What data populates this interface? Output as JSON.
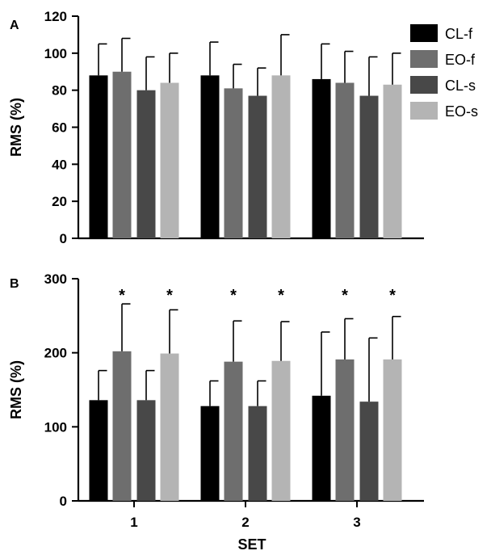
{
  "chart_data": [
    {
      "type": "bar",
      "panel": "A",
      "categories": [
        "1",
        "2",
        "3"
      ],
      "ylabel": "RMS (%)",
      "xlabel": "",
      "ylim": [
        0,
        120
      ],
      "yticks": [
        0,
        20,
        40,
        60,
        80,
        100,
        120
      ],
      "series": [
        {
          "name": "CL-f",
          "color": "#000000",
          "values": [
            88,
            88,
            86
          ],
          "errors": [
            17,
            18,
            19
          ]
        },
        {
          "name": "EO-f",
          "color": "#6e6e6e",
          "values": [
            90,
            81,
            84
          ],
          "errors": [
            18,
            13,
            17
          ]
        },
        {
          "name": "CL-s",
          "color": "#484848",
          "values": [
            80,
            77,
            77
          ],
          "errors": [
            18,
            15,
            21
          ]
        },
        {
          "name": "EO-s",
          "color": "#b4b4b4",
          "values": [
            84,
            88,
            83
          ],
          "errors": [
            16,
            22,
            17
          ]
        }
      ],
      "significance": []
    },
    {
      "type": "bar",
      "panel": "B",
      "categories": [
        "1",
        "2",
        "3"
      ],
      "ylabel": "RMS (%)",
      "xlabel": "SET",
      "ylim": [
        0,
        300
      ],
      "yticks": [
        0,
        100,
        200,
        300
      ],
      "series": [
        {
          "name": "CL-f",
          "color": "#000000",
          "values": [
            136,
            128,
            142
          ],
          "errors": [
            40,
            34,
            86
          ]
        },
        {
          "name": "EO-f",
          "color": "#6e6e6e",
          "values": [
            202,
            188,
            191
          ],
          "errors": [
            64,
            55,
            55
          ]
        },
        {
          "name": "CL-s",
          "color": "#484848",
          "values": [
            136,
            128,
            134
          ],
          "errors": [
            40,
            34,
            86
          ]
        },
        {
          "name": "EO-s",
          "color": "#b4b4b4",
          "values": [
            199,
            189,
            191
          ],
          "errors": [
            59,
            53,
            58
          ]
        }
      ],
      "significance": [
        {
          "category": "1",
          "series": "EO-f",
          "mark": "*"
        },
        {
          "category": "1",
          "series": "EO-s",
          "mark": "*"
        },
        {
          "category": "2",
          "series": "EO-f",
          "mark": "*"
        },
        {
          "category": "2",
          "series": "EO-s",
          "mark": "*"
        },
        {
          "category": "3",
          "series": "EO-f",
          "mark": "*"
        },
        {
          "category": "3",
          "series": "EO-s",
          "mark": "*"
        }
      ]
    }
  ],
  "legend": {
    "placement": "top-right",
    "items": [
      {
        "name": "CL-f",
        "color": "#000000"
      },
      {
        "name": "EO-f",
        "color": "#6e6e6e"
      },
      {
        "name": "CL-s",
        "color": "#484848"
      },
      {
        "name": "EO-s",
        "color": "#b4b4b4"
      }
    ]
  }
}
